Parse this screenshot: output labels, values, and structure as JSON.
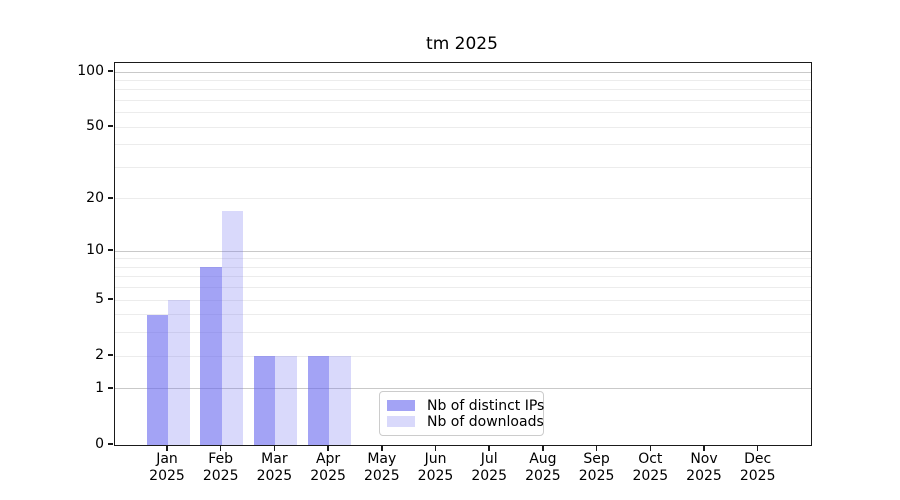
{
  "chart_data": {
    "type": "bar",
    "title": "tm 2025",
    "categories": [
      "Jan",
      "Feb",
      "Mar",
      "Apr",
      "May",
      "Jun",
      "Jul",
      "Aug",
      "Sep",
      "Oct",
      "Nov",
      "Dec"
    ],
    "category_year": "2025",
    "series": [
      {
        "name": "Nb of distinct IPs",
        "color": "rgba(102,102,238,0.60)",
        "values": [
          4,
          8,
          2,
          2,
          0,
          0,
          0,
          0,
          0,
          0,
          0,
          0
        ]
      },
      {
        "name": "Nb of downloads",
        "color": "rgba(102,102,238,0.25)",
        "values": [
          5,
          17,
          2,
          2,
          0,
          0,
          0,
          0,
          0,
          0,
          0,
          0
        ]
      }
    ],
    "yscale": "log1p",
    "ylim": [
      0,
      112
    ],
    "ytick_labels": [
      0,
      1,
      2,
      5,
      10,
      20,
      50,
      100
    ],
    "major_gridlines": [
      1,
      10,
      100
    ],
    "minor_gridlines": [
      2,
      3,
      4,
      5,
      6,
      7,
      8,
      9,
      20,
      30,
      40,
      50,
      60,
      70,
      80,
      90
    ],
    "grid": true,
    "legend_position": "lower-center-left",
    "colors": {
      "bar_distinct_ips": "#a6a6f4",
      "bar_downloads": "#dadaf9",
      "major_grid": "#c9c9c9",
      "minor_grid": "#ececec",
      "spine": "#1a1a1a"
    }
  }
}
